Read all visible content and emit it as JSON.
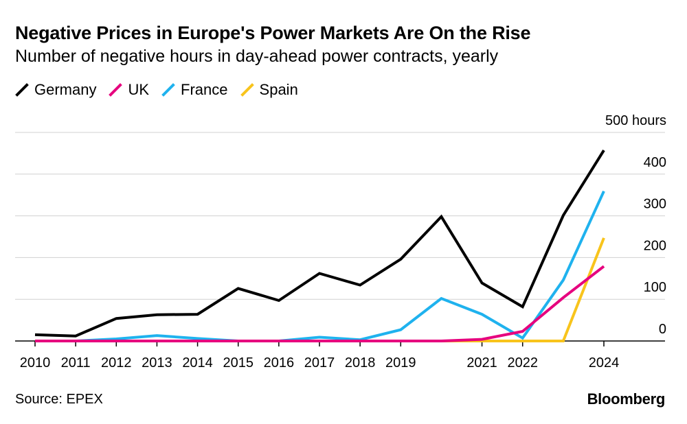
{
  "header": {
    "title": "Negative Prices in Europe's Power Markets Are On the Rise",
    "subtitle": "Number of negative hours in day-ahead power contracts, yearly"
  },
  "footer": {
    "source": "Source: EPEX",
    "brand": "Bloomberg"
  },
  "chart_data": {
    "type": "line",
    "title": "Negative Prices in Europe's Power Markets Are On the Rise",
    "subtitle": "Number of negative hours in day-ahead power contracts, yearly",
    "x": [
      2010,
      2011,
      2012,
      2013,
      2014,
      2015,
      2016,
      2017,
      2018,
      2019,
      2020,
      2021,
      2022,
      2023,
      2024
    ],
    "x_tick_labels": [
      "2010",
      "2011",
      "2012",
      "2013",
      "2014",
      "2015",
      "2016",
      "2017",
      "2018",
      "2019",
      "",
      "2021",
      "2022",
      "",
      "2024"
    ],
    "ylim": [
      0,
      500
    ],
    "y_ticks": [
      0,
      100,
      200,
      300,
      400,
      500
    ],
    "y_tick_labels": [
      "0",
      "100",
      "200",
      "300",
      "400",
      "500 hours"
    ],
    "xlabel": "",
    "ylabel": "hours",
    "legend_position": "top-left",
    "series": [
      {
        "name": "Germany",
        "color": "#000000",
        "values": [
          15,
          12,
          54,
          63,
          64,
          126,
          97,
          162,
          134,
          196,
          298,
          139,
          82,
          301,
          457
        ]
      },
      {
        "name": "UK",
        "color": "#e6007e",
        "values": [
          0,
          0,
          0,
          0,
          0,
          0,
          0,
          0,
          0,
          0,
          0,
          4,
          23,
          104,
          179
        ]
      },
      {
        "name": "France",
        "color": "#1fb2ee",
        "values": [
          0,
          0,
          5,
          13,
          6,
          0,
          0,
          9,
          3,
          27,
          102,
          64,
          7,
          146,
          359
        ]
      },
      {
        "name": "Spain",
        "color": "#f8c41c",
        "values": [
          0,
          0,
          0,
          0,
          0,
          0,
          0,
          0,
          0,
          0,
          0,
          0,
          0,
          0,
          247
        ]
      }
    ]
  }
}
